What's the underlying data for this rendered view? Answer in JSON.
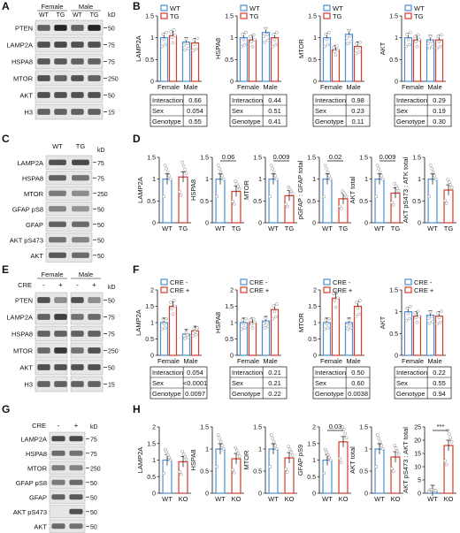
{
  "figure": {
    "panel_labels": [
      "A",
      "B",
      "C",
      "D",
      "E",
      "F",
      "G",
      "H"
    ],
    "legend_wt_tg": [
      "WT",
      "TG"
    ],
    "legend_cre": [
      "CRE -",
      "CRE +"
    ],
    "x_ticks_sex": [
      "Female",
      "Male"
    ],
    "x_ticks_wt_tg": [
      "WT",
      "TG"
    ],
    "x_ticks_wt_ko": [
      "WT",
      "KO"
    ],
    "table_rows_B": [
      "Interaction",
      "Sex",
      "Genotype"
    ],
    "kd_unit": "kD"
  },
  "blot_A": {
    "groups": [
      "Female",
      "Male"
    ],
    "lanes": [
      "WT",
      "TG",
      "WT",
      "TG"
    ],
    "rows": [
      "PTEN",
      "LAMP2A",
      "HSPA8",
      "MTOR",
      "AKT",
      "H3"
    ],
    "markers": [
      "50",
      "75",
      "75",
      "250",
      "50",
      "15"
    ]
  },
  "blot_C": {
    "lanes": [
      "WT",
      "TG"
    ],
    "rows": [
      "LAMP2A",
      "HSPA8",
      "MTOR",
      "GFAP pS8",
      "GFAP",
      "AKT pS473",
      "AKT"
    ],
    "markers": [
      "75",
      "75",
      "250",
      "50",
      "50",
      "50",
      "50"
    ]
  },
  "blot_E": {
    "groups": [
      "Female",
      "Male"
    ],
    "cre_label": "CRE",
    "cre_signs": [
      "-",
      "+",
      "-",
      "+"
    ],
    "rows": [
      "PTEN",
      "LAMP2A",
      "HSPA8",
      "MTOR",
      "AKT",
      "H3"
    ],
    "markers": [
      "50",
      "75",
      "75",
      "250",
      "50",
      "15"
    ]
  },
  "blot_G": {
    "cre_label": "CRE",
    "cre_signs": [
      "-",
      "+"
    ],
    "rows": [
      "LAMP2A",
      "HSPA8",
      "MTOR",
      "GFAP pS8",
      "GFAP",
      "AKT pS473",
      "AKT"
    ],
    "markers": [
      "75",
      "75",
      "250",
      "50",
      "50",
      "50",
      "50"
    ]
  },
  "chart_data": [
    {
      "panel": "B",
      "type": "bar",
      "ylabel": "LAMP2A",
      "categories": [
        "Female",
        "Male"
      ],
      "ylim": [
        0,
        1.5
      ],
      "yticks": [
        "0",
        "0.5",
        "1",
        "1.5"
      ],
      "series": [
        {
          "name": "WT",
          "values": [
            1.0,
            0.9
          ]
        },
        {
          "name": "TG",
          "values": [
            1.05,
            0.88
          ]
        }
      ],
      "stats": [
        [
          "Interaction",
          "0.66"
        ],
        [
          "Sex",
          "0.054"
        ],
        [
          "Genotype",
          "0.55"
        ]
      ]
    },
    {
      "panel": "B",
      "type": "bar",
      "ylabel": "HSPA8",
      "categories": [
        "Female",
        "Male"
      ],
      "ylim": [
        0,
        1.5
      ],
      "yticks": [
        "0",
        "0.5",
        "1",
        "1.5"
      ],
      "series": [
        {
          "name": "WT",
          "values": [
            1.0,
            1.12
          ]
        },
        {
          "name": "TG",
          "values": [
            0.95,
            1.0
          ]
        }
      ],
      "stats": [
        [
          "Interaction",
          "0.44"
        ],
        [
          "Sex",
          "0.51"
        ],
        [
          "Genotype",
          "0.41"
        ]
      ]
    },
    {
      "panel": "B",
      "type": "bar",
      "ylabel": "MTOR",
      "categories": [
        "Female",
        "Male"
      ],
      "ylim": [
        0,
        1.5
      ],
      "yticks": [
        "0",
        "0.5",
        "1",
        "1.5"
      ],
      "series": [
        {
          "name": "WT",
          "values": [
            1.0,
            1.08
          ]
        },
        {
          "name": "TG",
          "values": [
            0.72,
            0.8
          ]
        }
      ],
      "stats": [
        [
          "Interaction",
          "0.98"
        ],
        [
          "Sex",
          "0.23"
        ],
        [
          "Genotype",
          "0.11"
        ]
      ]
    },
    {
      "panel": "B",
      "type": "bar",
      "ylabel": "AKT",
      "categories": [
        "Female",
        "Male"
      ],
      "ylim": [
        0,
        1.5
      ],
      "yticks": [
        "0",
        "0.5",
        "1",
        "1.5"
      ],
      "series": [
        {
          "name": "WT",
          "values": [
            1.0,
            0.95
          ]
        },
        {
          "name": "TG",
          "values": [
            0.95,
            0.95
          ]
        }
      ],
      "stats": [
        [
          "Interaction",
          "0.29"
        ],
        [
          "Sex",
          "0.19"
        ],
        [
          "Genotype",
          "0.30"
        ]
      ]
    },
    {
      "panel": "D",
      "type": "bar",
      "ylabel": "LAMP2A",
      "categories": [
        "WT",
        "TG"
      ],
      "ylim": [
        0,
        1.5
      ],
      "yticks": [
        "0",
        "0.5",
        "1",
        "1.5"
      ],
      "values": [
        1.0,
        1.05
      ],
      "sig": ""
    },
    {
      "panel": "D",
      "type": "bar",
      "ylabel": "HSPA8",
      "categories": [
        "WT",
        "TG"
      ],
      "ylim": [
        0,
        1.5
      ],
      "yticks": [
        "0",
        "0.5",
        "1",
        "1.5"
      ],
      "values": [
        1.0,
        0.72
      ],
      "sig": "0.06"
    },
    {
      "panel": "D",
      "type": "bar",
      "ylabel": "MTOR",
      "categories": [
        "WT",
        "TG"
      ],
      "ylim": [
        0,
        1.5
      ],
      "yticks": [
        "0",
        "0.5",
        "1",
        "1.5"
      ],
      "values": [
        1.0,
        0.62
      ],
      "sig": "0.009"
    },
    {
      "panel": "D",
      "type": "bar",
      "ylabel": "pGFAP : GFAP total",
      "categories": [
        "WT",
        "TG"
      ],
      "ylim": [
        0,
        1.5
      ],
      "yticks": [
        "0",
        "0.5",
        "1",
        "1.5"
      ],
      "values": [
        1.0,
        0.55
      ],
      "sig": "0.02"
    },
    {
      "panel": "D",
      "type": "bar",
      "ylabel": "AKT total",
      "categories": [
        "WT",
        "TG"
      ],
      "ylim": [
        0,
        1.5
      ],
      "yticks": [
        "0",
        "0.5",
        "1",
        "1.5"
      ],
      "values": [
        1.0,
        0.68
      ],
      "sig": "0.009"
    },
    {
      "panel": "D",
      "type": "bar",
      "ylabel": "AKT pS473 : ATK total",
      "categories": [
        "WT",
        "TG"
      ],
      "ylim": [
        0,
        1.5
      ],
      "yticks": [
        "0",
        "0.5",
        "1",
        "1.5"
      ],
      "values": [
        1.0,
        0.75
      ],
      "sig": ""
    },
    {
      "panel": "F",
      "type": "bar",
      "ylabel": "LAMP2A",
      "categories": [
        "Female",
        "Male"
      ],
      "ylim": [
        0,
        2
      ],
      "yticks": [
        "0",
        "0.5",
        "1",
        "1.5",
        "2"
      ],
      "series": [
        {
          "name": "CRE -",
          "values": [
            1.0,
            0.65
          ]
        },
        {
          "name": "CRE +",
          "values": [
            1.5,
            0.75
          ]
        }
      ],
      "stats": [
        [
          "Interaction",
          "0.054"
        ],
        [
          "Sex",
          "<0.0001"
        ],
        [
          "Genotype",
          "0.0097"
        ]
      ]
    },
    {
      "panel": "F",
      "type": "bar",
      "ylabel": "HSPA8",
      "categories": [
        "Female",
        "Male"
      ],
      "ylim": [
        0,
        2
      ],
      "yticks": [
        "0",
        "0.5",
        "1",
        "1.5",
        "2"
      ],
      "series": [
        {
          "name": "CRE -",
          "values": [
            1.0,
            1.05
          ]
        },
        {
          "name": "CRE +",
          "values": [
            1.0,
            1.4
          ]
        }
      ],
      "stats": [
        [
          "Interaction",
          "0.21"
        ],
        [
          "Sex",
          "0.21"
        ],
        [
          "Genotype",
          "0.22"
        ]
      ]
    },
    {
      "panel": "F",
      "type": "bar",
      "ylabel": "MTOR",
      "categories": [
        "Female",
        "Male"
      ],
      "ylim": [
        0,
        2
      ],
      "yticks": [
        "0",
        "0.5",
        "1",
        "1.5",
        "2"
      ],
      "series": [
        {
          "name": "CRE -",
          "values": [
            1.0,
            1.0
          ]
        },
        {
          "name": "CRE +",
          "values": [
            1.75,
            1.5
          ]
        }
      ],
      "stats": [
        [
          "Interaction",
          "0.50"
        ],
        [
          "Sex",
          "0.60"
        ],
        [
          "Genotype",
          "0.0038"
        ]
      ]
    },
    {
      "panel": "F",
      "type": "bar",
      "ylabel": "AKT",
      "categories": [
        "Female",
        "Male"
      ],
      "ylim": [
        0,
        1.5
      ],
      "yticks": [
        "0",
        "0.5",
        "1",
        "1.5"
      ],
      "series": [
        {
          "name": "CRE -",
          "values": [
            1.0,
            0.92
          ]
        },
        {
          "name": "CRE +",
          "values": [
            0.9,
            0.9
          ]
        }
      ],
      "stats": [
        [
          "Interaction",
          "0.22"
        ],
        [
          "Sex",
          "0.55"
        ],
        [
          "Genotype",
          "0.94"
        ]
      ]
    },
    {
      "panel": "H",
      "type": "bar",
      "ylabel": "LAMP2A",
      "categories": [
        "WT",
        "KO"
      ],
      "ylim": [
        0,
        2
      ],
      "yticks": [
        "0",
        "0.5",
        "1",
        "1.5",
        "2"
      ],
      "values": [
        1.0,
        0.95
      ],
      "sig": ""
    },
    {
      "panel": "H",
      "type": "bar",
      "ylabel": "HSPA8",
      "categories": [
        "WT",
        "KO"
      ],
      "ylim": [
        0,
        1.5
      ],
      "yticks": [
        "0",
        "0.5",
        "1",
        "1.5"
      ],
      "values": [
        1.0,
        0.78
      ],
      "sig": ""
    },
    {
      "panel": "H",
      "type": "bar",
      "ylabel": "MTOR",
      "categories": [
        "WT",
        "KO"
      ],
      "ylim": [
        0,
        1.5
      ],
      "yticks": [
        "0",
        "0.5",
        "1",
        "1.5"
      ],
      "values": [
        1.0,
        0.8
      ],
      "sig": ""
    },
    {
      "panel": "H",
      "type": "bar",
      "ylabel": "GFAP pS9",
      "categories": [
        "WT",
        "KO"
      ],
      "ylim": [
        0,
        2
      ],
      "yticks": [
        "0",
        "0.5",
        "1",
        "1.5",
        "2"
      ],
      "values": [
        1.0,
        1.55
      ],
      "sig": "0.03"
    },
    {
      "panel": "H",
      "type": "bar",
      "ylabel": "AKT total",
      "categories": [
        "WT",
        "KO"
      ],
      "ylim": [
        0,
        1.5
      ],
      "yticks": [
        "0",
        "0.5",
        "1",
        "1.5"
      ],
      "values": [
        1.0,
        0.82
      ],
      "sig": ""
    },
    {
      "panel": "H",
      "type": "bar",
      "ylabel": "AKT pS473 : AKT total",
      "categories": [
        "WT",
        "KO"
      ],
      "ylim": [
        0,
        25
      ],
      "yticks": [
        "0",
        "5",
        "10",
        "15",
        "20",
        "25"
      ],
      "values": [
        1.0,
        18.0
      ],
      "sig": "***"
    }
  ]
}
